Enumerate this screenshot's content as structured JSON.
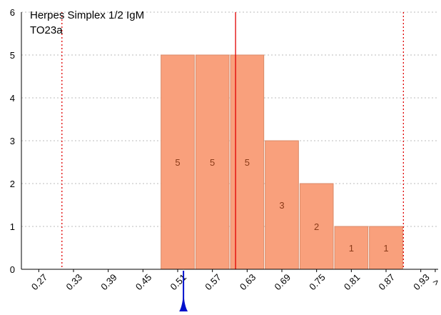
{
  "title_lines": [
    "Herpes Simplex 1/2 IgM",
    "TO23a"
  ],
  "chart_data": {
    "type": "bar",
    "title": "Herpes Simplex 1/2 IgM",
    "subtitle": "TO23a",
    "xlabel": "",
    "ylabel": "",
    "x_ticks": [
      "0.27",
      "0.33",
      "0.39",
      "0.45",
      "0.51",
      "0.57",
      "0.63",
      "0.69",
      "0.75",
      "0.81",
      "0.87",
      "0.93",
      ">"
    ],
    "x_tick_values": [
      0.27,
      0.33,
      0.39,
      0.45,
      0.51,
      0.57,
      0.63,
      0.69,
      0.75,
      0.81,
      0.87,
      0.93
    ],
    "xlim": [
      0.24,
      0.96
    ],
    "ylim": [
      0,
      6
    ],
    "y_ticks": [
      0,
      1,
      2,
      3,
      4,
      5,
      6
    ],
    "bins": [
      {
        "x_start": 0.48,
        "x_end": 0.54,
        "count": 5,
        "label": "5"
      },
      {
        "x_start": 0.54,
        "x_end": 0.6,
        "count": 5,
        "label": "5"
      },
      {
        "x_start": 0.6,
        "x_end": 0.66,
        "count": 5,
        "label": "5"
      },
      {
        "x_start": 0.66,
        "x_end": 0.72,
        "count": 3,
        "label": "3"
      },
      {
        "x_start": 0.72,
        "x_end": 0.78,
        "count": 2,
        "label": "2"
      },
      {
        "x_start": 0.78,
        "x_end": 0.84,
        "count": 1,
        "label": "1"
      },
      {
        "x_start": 0.84,
        "x_end": 0.9,
        "count": 1,
        "label": "1"
      }
    ],
    "reference_lines": [
      {
        "x": 0.31,
        "style": "dotted",
        "color": "#e00000"
      },
      {
        "x": 0.9,
        "style": "dotted",
        "color": "#e00000"
      },
      {
        "x": 0.61,
        "style": "solid",
        "color": "#e00000"
      }
    ],
    "marker": {
      "x": 0.52,
      "color": "#0010cc"
    },
    "grid": true,
    "colors": {
      "bar_fill": "#f9a07c",
      "bar_stroke": "#d98a68",
      "bar_label": "#8a3a18",
      "grid": "#bbbbbb"
    }
  }
}
